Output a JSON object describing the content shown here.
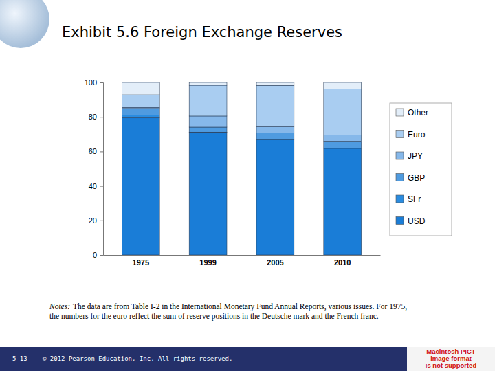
{
  "chart_data": {
    "type": "bar",
    "title": "Exhibit 5.6  Foreign Exchange Reserves",
    "stacked": true,
    "legend": "right",
    "grid": false,
    "categories": [
      "1975",
      "1999",
      "2005",
      "2010"
    ],
    "series": [
      {
        "name": "USD",
        "color": "#1a7dd7",
        "values": [
          79.4,
          71.0,
          66.9,
          61.8
        ]
      },
      {
        "name": "SFr",
        "color": "#2a8ce0",
        "values": [
          1.6,
          0.2,
          0.2,
          0.1
        ]
      },
      {
        "name": "GBP",
        "color": "#4f9be0",
        "values": [
          3.9,
          2.9,
          3.6,
          4.0
        ]
      },
      {
        "name": "JPY",
        "color": "#86b8ea",
        "values": [
          0.6,
          6.4,
          3.6,
          3.7
        ]
      },
      {
        "name": "Euro",
        "color": "#a9cdf1",
        "values": [
          7.3,
          17.9,
          24.0,
          26.6
        ]
      },
      {
        "name": "Other",
        "color": "#e3eef9",
        "values": [
          7.2,
          1.6,
          1.7,
          3.8
        ]
      }
    ],
    "ylim": [
      0,
      100
    ],
    "yticks": [
      0,
      20,
      40,
      60,
      80,
      100
    ]
  },
  "notes": {
    "label": "Notes:",
    "lines": [
      "The data are from Table I-2 in the International Monetary Fund Annual Reports, various issues. For 1975,",
      "the numbers for the euro reflect the sum of reserve positions in the Deutsche mark and the French franc."
    ]
  },
  "footer": {
    "page": "5-13",
    "copyright": "© 2012 Pearson Education, Inc. All rights reserved.",
    "image_placeholder": [
      "Macintosh PICT",
      "image format",
      "is not supported"
    ]
  }
}
